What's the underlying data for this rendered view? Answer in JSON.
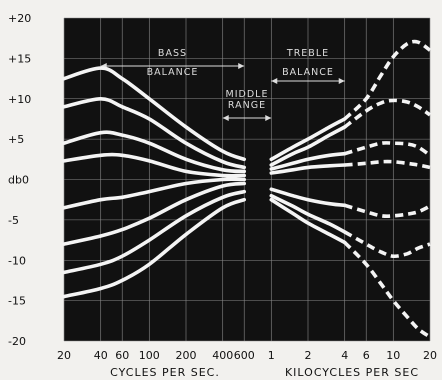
{
  "chart_data": {
    "type": "line",
    "title": "",
    "xlabel": "",
    "ylabel": "",
    "x_scale": "log",
    "x_range_hz": [
      20,
      20000
    ],
    "ylim": [
      -20,
      20
    ],
    "y_ticks": [
      {
        "v": 20,
        "label": "+20"
      },
      {
        "v": 15,
        "label": "+15"
      },
      {
        "v": 10,
        "label": "+10"
      },
      {
        "v": 5,
        "label": "+5"
      },
      {
        "v": 0,
        "label": "db0"
      },
      {
        "v": -5,
        "label": "-5"
      },
      {
        "v": -10,
        "label": "-10"
      },
      {
        "v": -15,
        "label": "-15"
      },
      {
        "v": -20,
        "label": "-20"
      }
    ],
    "x_ticks": [
      {
        "hz": 20,
        "label": "20"
      },
      {
        "hz": 40,
        "label": "40"
      },
      {
        "hz": 60,
        "label": "60"
      },
      {
        "hz": 100,
        "label": "100"
      },
      {
        "hz": 200,
        "label": "200"
      },
      {
        "hz": 400,
        "label": "400"
      },
      {
        "hz": 600,
        "label": "600"
      },
      {
        "hz": 1000,
        "label": "1"
      },
      {
        "hz": 2000,
        "label": "2"
      },
      {
        "hz": 4000,
        "label": "4"
      },
      {
        "hz": 6000,
        "label": "6"
      },
      {
        "hz": 10000,
        "label": "10"
      },
      {
        "hz": 20000,
        "label": "20"
      }
    ],
    "x_unit_labels": [
      "CYCLES PER SEC.",
      "KILOCYCLES PER SEC"
    ],
    "range_annotations": [
      {
        "lines": [
          "BASS",
          "BALANCE"
        ],
        "from_hz": 40,
        "to_hz": 600
      },
      {
        "lines": [
          "MIDDLE",
          "RANGE"
        ],
        "from_hz": 400,
        "to_hz": 1000
      },
      {
        "lines": [
          "TREBLE",
          "BALANCE"
        ],
        "from_hz": 1000,
        "to_hz": 4000
      }
    ],
    "bass_curves": {
      "x": [
        20,
        40,
        60,
        100,
        200,
        400,
        600
      ],
      "series": [
        {
          "values": [
            12.5,
            13.8,
            12.5,
            10,
            6.5,
            3.5,
            2.5
          ]
        },
        {
          "values": [
            9,
            10,
            9,
            7.5,
            4.5,
            2.2,
            1.5
          ]
        },
        {
          "values": [
            4.5,
            5.8,
            5.5,
            4.5,
            2.5,
            1.2,
            1
          ]
        },
        {
          "values": [
            2.3,
            3,
            3,
            2.3,
            1,
            0.5,
            0.5
          ]
        },
        {
          "values": [
            -3.5,
            -2.5,
            -2.2,
            -1.5,
            -0.5,
            0,
            0
          ]
        },
        {
          "values": [
            -8,
            -7,
            -6.2,
            -4.8,
            -2.5,
            -0.8,
            -0.5
          ]
        },
        {
          "values": [
            -11.5,
            -10.5,
            -9.5,
            -7.5,
            -4.5,
            -2.2,
            -1.5
          ]
        },
        {
          "values": [
            -14.5,
            -13.5,
            -12.5,
            -10.5,
            -6.8,
            -3.5,
            -2.5
          ]
        }
      ]
    },
    "treble_curves": {
      "x_solid": [
        1000,
        1500,
        2000,
        3000,
        4000
      ],
      "x_dashed": [
        4000,
        6000,
        8000,
        10000,
        13000,
        16000,
        20000
      ],
      "series": [
        {
          "solid": [
            2.5,
            4,
            5,
            6.5,
            7.5
          ],
          "dashed": [
            7.5,
            10,
            13,
            15.2,
            16.8,
            17,
            16
          ]
        },
        {
          "solid": [
            1.8,
            3.2,
            4,
            5.5,
            6.5
          ],
          "dashed": [
            6.5,
            8.5,
            9.5,
            9.8,
            9.6,
            9,
            8
          ]
        },
        {
          "solid": [
            1.3,
            2,
            2.5,
            3,
            3.2
          ],
          "dashed": [
            3.2,
            4,
            4.5,
            4.5,
            4.4,
            4,
            3
          ]
        },
        {
          "solid": [
            0.8,
            1.2,
            1.5,
            1.7,
            1.8
          ],
          "dashed": [
            1.8,
            2,
            2.2,
            2.2,
            2,
            1.8,
            1.5
          ]
        },
        {
          "solid": [
            -1.2,
            -2,
            -2.5,
            -3,
            -3.2
          ],
          "dashed": [
            -3.2,
            -4,
            -4.5,
            -4.5,
            -4.3,
            -4,
            -3.3
          ]
        },
        {
          "solid": [
            -2,
            -3.3,
            -4.3,
            -5.5,
            -6.5
          ],
          "dashed": [
            -6.5,
            -8,
            -9,
            -9.5,
            -9.2,
            -8.5,
            -8
          ]
        },
        {
          "solid": [
            -2.5,
            -4.2,
            -5.4,
            -6.8,
            -7.8
          ],
          "dashed": [
            -7.8,
            -10.5,
            -13,
            -15,
            -17,
            -18.5,
            -19.5
          ]
        }
      ]
    },
    "grid": true,
    "legend": "none"
  }
}
